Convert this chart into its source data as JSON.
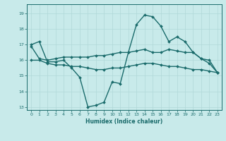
{
  "xlabel": "Humidex (Indice chaleur)",
  "background_color": "#c8eaea",
  "grid_color": "#b0d8d8",
  "line_color": "#1a6b6b",
  "xlim": [
    -0.5,
    23.5
  ],
  "ylim": [
    12.8,
    19.6
  ],
  "yticks": [
    13,
    14,
    15,
    16,
    17,
    18,
    19
  ],
  "xticks": [
    0,
    1,
    2,
    3,
    4,
    5,
    6,
    7,
    8,
    9,
    10,
    11,
    12,
    13,
    14,
    15,
    16,
    17,
    18,
    19,
    20,
    21,
    22,
    23
  ],
  "lines": [
    {
      "x": [
        0,
        1,
        2,
        3,
        4,
        5,
        6,
        7,
        8,
        9,
        10,
        11,
        12,
        13,
        14,
        15,
        16,
        17,
        18,
        19,
        20,
        21,
        22,
        23
      ],
      "y": [
        17.0,
        17.2,
        15.9,
        15.9,
        16.0,
        15.5,
        14.9,
        13.0,
        13.1,
        13.3,
        14.6,
        14.5,
        16.5,
        18.3,
        18.9,
        18.8,
        18.2,
        17.2,
        17.5,
        17.2,
        16.5,
        16.1,
        15.8,
        15.2
      ],
      "linewidth": 1.0,
      "markersize": 2.0
    },
    {
      "x": [
        0,
        1,
        2,
        3,
        4,
        5,
        6,
        7,
        8,
        9,
        10,
        11,
        12,
        13,
        14,
        15,
        16,
        17,
        18,
        19,
        20,
        21,
        22,
        23
      ],
      "y": [
        16.9,
        16.1,
        16.0,
        16.1,
        16.2,
        16.2,
        16.2,
        16.2,
        16.3,
        16.3,
        16.4,
        16.5,
        16.5,
        16.6,
        16.7,
        16.5,
        16.5,
        16.7,
        16.6,
        16.5,
        16.5,
        16.1,
        16.0,
        15.2
      ],
      "linewidth": 1.0,
      "markersize": 2.0
    },
    {
      "x": [
        0,
        1,
        2,
        3,
        4,
        5,
        6,
        7,
        8,
        9,
        10,
        11,
        12,
        13,
        14,
        15,
        16,
        17,
        18,
        19,
        20,
        21,
        22,
        23
      ],
      "y": [
        16.0,
        16.0,
        15.8,
        15.7,
        15.7,
        15.6,
        15.6,
        15.5,
        15.4,
        15.4,
        15.5,
        15.5,
        15.6,
        15.7,
        15.8,
        15.8,
        15.7,
        15.6,
        15.6,
        15.5,
        15.4,
        15.4,
        15.3,
        15.2
      ],
      "linewidth": 1.0,
      "markersize": 2.0
    }
  ]
}
